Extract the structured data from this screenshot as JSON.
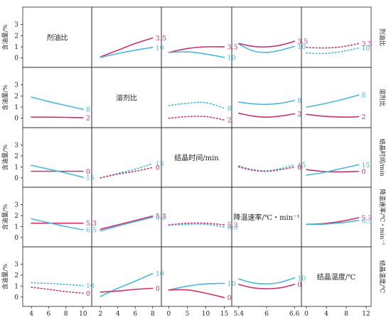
{
  "colors": {
    "pink": "#c8326e",
    "cyan": "#4ab8d8",
    "frame": "#222222",
    "text": "#222222"
  },
  "row_ylabel": "含油量/%",
  "factors": [
    "剂油比",
    "溶剂比",
    "结晶时间/min",
    "降温速率/℃・min⁻¹",
    "结晶温度/℃"
  ],
  "x_ticks": [
    [
      "4",
      "6",
      "8",
      "10"
    ],
    [
      "2",
      "4",
      "6",
      "8"
    ],
    [
      "0",
      "5",
      "10",
      "15"
    ],
    [
      "5.4",
      "6",
      "6.6"
    ],
    [
      "0",
      "4",
      "8",
      "12"
    ]
  ],
  "chart_data": {
    "type": "interaction-matrix",
    "y_ticks": [
      0,
      1,
      2,
      3
    ],
    "ylim": [
      -0.4,
      4.0
    ],
    "factors": [
      {
        "name": "剂油比",
        "ticks": [
          4,
          6,
          8,
          10
        ],
        "xlim": [
          3,
          11
        ]
      },
      {
        "name": "溶剂比",
        "ticks": [
          2,
          4,
          6,
          8
        ],
        "xlim": [
          1,
          9
        ]
      },
      {
        "name": "结晶时间/min",
        "ticks": [
          0,
          5,
          10,
          15
        ],
        "xlim": [
          -2,
          17
        ]
      },
      {
        "name": "降温速率/℃・min⁻¹",
        "ticks": [
          5.4,
          6,
          6.6
        ],
        "xlim": [
          5.25,
          6.75
        ]
      },
      {
        "name": "结晶温度/℃",
        "ticks": [
          0,
          4,
          8,
          12
        ],
        "xlim": [
          -1,
          13
        ]
      }
    ],
    "panels": [
      {
        "row": 0,
        "col": 1,
        "x": [
          2,
          4,
          6,
          8
        ],
        "series": [
          {
            "label": "3.5",
            "color": "pink",
            "y": [
              0.1,
              0.7,
              1.3,
              1.8
            ]
          },
          {
            "label": "10",
            "color": "cyan",
            "y": [
              0.05,
              0.4,
              0.7,
              0.95
            ]
          }
        ]
      },
      {
        "row": 0,
        "col": 2,
        "x": [
          0,
          5,
          10,
          15
        ],
        "series": [
          {
            "label": "3.5",
            "color": "pink",
            "y": [
              0.5,
              0.85,
              1.0,
              1.0
            ]
          },
          {
            "label": "10",
            "color": "cyan",
            "y": [
              0.5,
              0.55,
              0.35,
              0.05
            ]
          }
        ]
      },
      {
        "row": 0,
        "col": 3,
        "x": [
          5.4,
          5.7,
          6.0,
          6.3,
          6.6
        ],
        "series": [
          {
            "label": "3.5",
            "color": "pink",
            "y": [
              1.3,
              1.05,
              1.0,
              1.15,
              1.5
            ]
          },
          {
            "label": "10",
            "color": "cyan",
            "y": [
              1.25,
              0.65,
              0.5,
              0.7,
              1.05
            ]
          }
        ]
      },
      {
        "row": 0,
        "col": 4,
        "dashed": true,
        "x": [
          0,
          3,
          6,
          9,
          10.5
        ],
        "series": [
          {
            "label": "3.5",
            "color": "pink",
            "y": [
              0.95,
              0.9,
              0.95,
              1.15,
              1.3
            ]
          },
          {
            "label": "10",
            "color": "cyan",
            "y": [
              0.45,
              0.4,
              0.5,
              0.75,
              0.9
            ]
          }
        ]
      },
      {
        "row": 1,
        "col": 0,
        "x": [
          4,
          6,
          8,
          10
        ],
        "series": [
          {
            "label": "8",
            "color": "cyan",
            "y": [
              1.9,
              1.5,
              1.15,
              0.8
            ]
          },
          {
            "label": "2",
            "color": "pink",
            "y": [
              0.1,
              0.1,
              0.08,
              0.05
            ]
          }
        ]
      },
      {
        "row": 1,
        "col": 2,
        "dashed": true,
        "x": [
          0,
          5,
          10,
          15
        ],
        "series": [
          {
            "label": "8",
            "color": "cyan",
            "y": [
              1.15,
              1.35,
              1.4,
              0.9
            ]
          },
          {
            "label": "2",
            "color": "pink",
            "y": [
              0.0,
              0.15,
              0.15,
              -0.15
            ]
          }
        ]
      },
      {
        "row": 1,
        "col": 3,
        "x": [
          5.4,
          5.7,
          6.0,
          6.3,
          6.6
        ],
        "series": [
          {
            "label": "8",
            "color": "cyan",
            "y": [
              1.45,
              1.3,
              1.25,
              1.35,
              1.6
            ]
          },
          {
            "label": "2",
            "color": "pink",
            "y": [
              0.45,
              0.2,
              0.1,
              0.2,
              0.4
            ]
          }
        ]
      },
      {
        "row": 1,
        "col": 4,
        "x": [
          0,
          3,
          6,
          9,
          10.5
        ],
        "series": [
          {
            "label": "8",
            "color": "cyan",
            "y": [
              1.0,
              1.25,
              1.55,
              1.9,
              2.1
            ]
          },
          {
            "label": "2",
            "color": "pink",
            "y": [
              0.35,
              0.2,
              0.12,
              0.1,
              0.15
            ]
          }
        ]
      },
      {
        "row": 2,
        "col": 0,
        "x": [
          4,
          6,
          8,
          10
        ],
        "series": [
          {
            "label": "0",
            "color": "pink",
            "y": [
              0.6,
              0.6,
              0.6,
              0.6
            ]
          },
          {
            "label": "15",
            "color": "cyan",
            "y": [
              1.15,
              0.8,
              0.45,
              0.05
            ]
          }
        ]
      },
      {
        "row": 2,
        "col": 1,
        "dashed": true,
        "x": [
          2,
          4,
          6,
          8
        ],
        "series": [
          {
            "label": "15",
            "color": "cyan",
            "y": [
              0.0,
              0.4,
              0.8,
              1.3
            ]
          },
          {
            "label": "0",
            "color": "pink",
            "y": [
              0.0,
              0.35,
              0.6,
              0.95
            ]
          }
        ]
      },
      {
        "row": 2,
        "col": 3,
        "dashed": true,
        "x": [
          5.4,
          5.7,
          6.0,
          6.3,
          6.6
        ],
        "series": [
          {
            "label": "15",
            "color": "cyan",
            "y": [
              1.1,
              0.75,
              0.65,
              0.85,
              1.2
            ]
          },
          {
            "label": "0",
            "color": "pink",
            "y": [
              1.0,
              0.7,
              0.6,
              0.75,
              1.0
            ]
          }
        ]
      },
      {
        "row": 2,
        "col": 4,
        "x": [
          0,
          3,
          6,
          9,
          10.5
        ],
        "series": [
          {
            "label": "0",
            "color": "pink",
            "y": [
              0.75,
              0.6,
              0.55,
              0.58,
              0.6
            ]
          },
          {
            "label": "15",
            "color": "cyan",
            "y": [
              0.25,
              0.45,
              0.75,
              1.05,
              1.2
            ]
          }
        ]
      },
      {
        "row": 3,
        "col": 0,
        "x": [
          4,
          6,
          8,
          10
        ],
        "series": [
          {
            "label": "5.3",
            "color": "pink",
            "y": [
              1.3,
              1.3,
              1.3,
              1.3
            ]
          },
          {
            "label": "6.5",
            "color": "cyan",
            "y": [
              1.7,
              1.35,
              1.0,
              0.7
            ]
          }
        ]
      },
      {
        "row": 3,
        "col": 1,
        "x": [
          2,
          4,
          6,
          8
        ],
        "series": [
          {
            "label": "5.3",
            "color": "pink",
            "y": [
              0.75,
              1.15,
              1.55,
              1.95
            ]
          },
          {
            "label": "6.5",
            "color": "cyan",
            "y": [
              0.6,
              1.05,
              1.45,
              1.85
            ]
          }
        ]
      },
      {
        "row": 3,
        "col": 2,
        "dashed": true,
        "x": [
          0,
          5,
          10,
          15
        ],
        "series": [
          {
            "label": "5.3",
            "color": "pink",
            "y": [
              1.15,
              1.3,
              1.3,
              1.15
            ]
          },
          {
            "label": "6.5",
            "color": "cyan",
            "y": [
              1.1,
              1.2,
              1.2,
              0.95
            ]
          }
        ]
      },
      {
        "row": 3,
        "col": 4,
        "x": [
          0,
          3,
          6,
          9,
          10.5
        ],
        "series": [
          {
            "label": "5.3",
            "color": "pink",
            "y": [
              1.2,
              1.25,
              1.4,
              1.65,
              1.8
            ]
          },
          {
            "label": "6.5",
            "color": "cyan",
            "y": [
              1.2,
              1.2,
              1.3,
              1.45,
              1.55
            ]
          }
        ]
      },
      {
        "row": 4,
        "col": 0,
        "dashed": true,
        "x": [
          4,
          6,
          8,
          10
        ],
        "series": [
          {
            "label": "10",
            "color": "cyan",
            "y": [
              1.3,
              1.25,
              1.15,
              1.05
            ]
          },
          {
            "label": "0",
            "color": "pink",
            "y": [
              0.9,
              0.7,
              0.5,
              0.35
            ]
          }
        ]
      },
      {
        "row": 4,
        "col": 1,
        "x": [
          2,
          4,
          6,
          8
        ],
        "series": [
          {
            "label": "10",
            "color": "cyan",
            "y": [
              0.05,
              0.8,
              1.45,
              2.15
            ]
          },
          {
            "label": "0",
            "color": "pink",
            "y": [
              0.45,
              0.55,
              0.7,
              0.8
            ]
          }
        ]
      },
      {
        "row": 4,
        "col": 2,
        "x": [
          0,
          5,
          10,
          15
        ],
        "series": [
          {
            "label": "10",
            "color": "cyan",
            "y": [
              0.65,
              1.0,
              1.2,
              1.25
            ]
          },
          {
            "label": "0",
            "color": "pink",
            "y": [
              0.65,
              0.65,
              0.35,
              -0.05
            ]
          }
        ]
      },
      {
        "row": 4,
        "col": 3,
        "x": [
          5.4,
          5.7,
          6.0,
          6.3,
          6.6
        ],
        "series": [
          {
            "label": "10",
            "color": "cyan",
            "y": [
              1.65,
              1.3,
              1.2,
              1.35,
              1.75
            ]
          },
          {
            "label": "0",
            "color": "pink",
            "y": [
              1.15,
              0.85,
              0.75,
              0.85,
              1.15
            ]
          }
        ]
      }
    ]
  }
}
